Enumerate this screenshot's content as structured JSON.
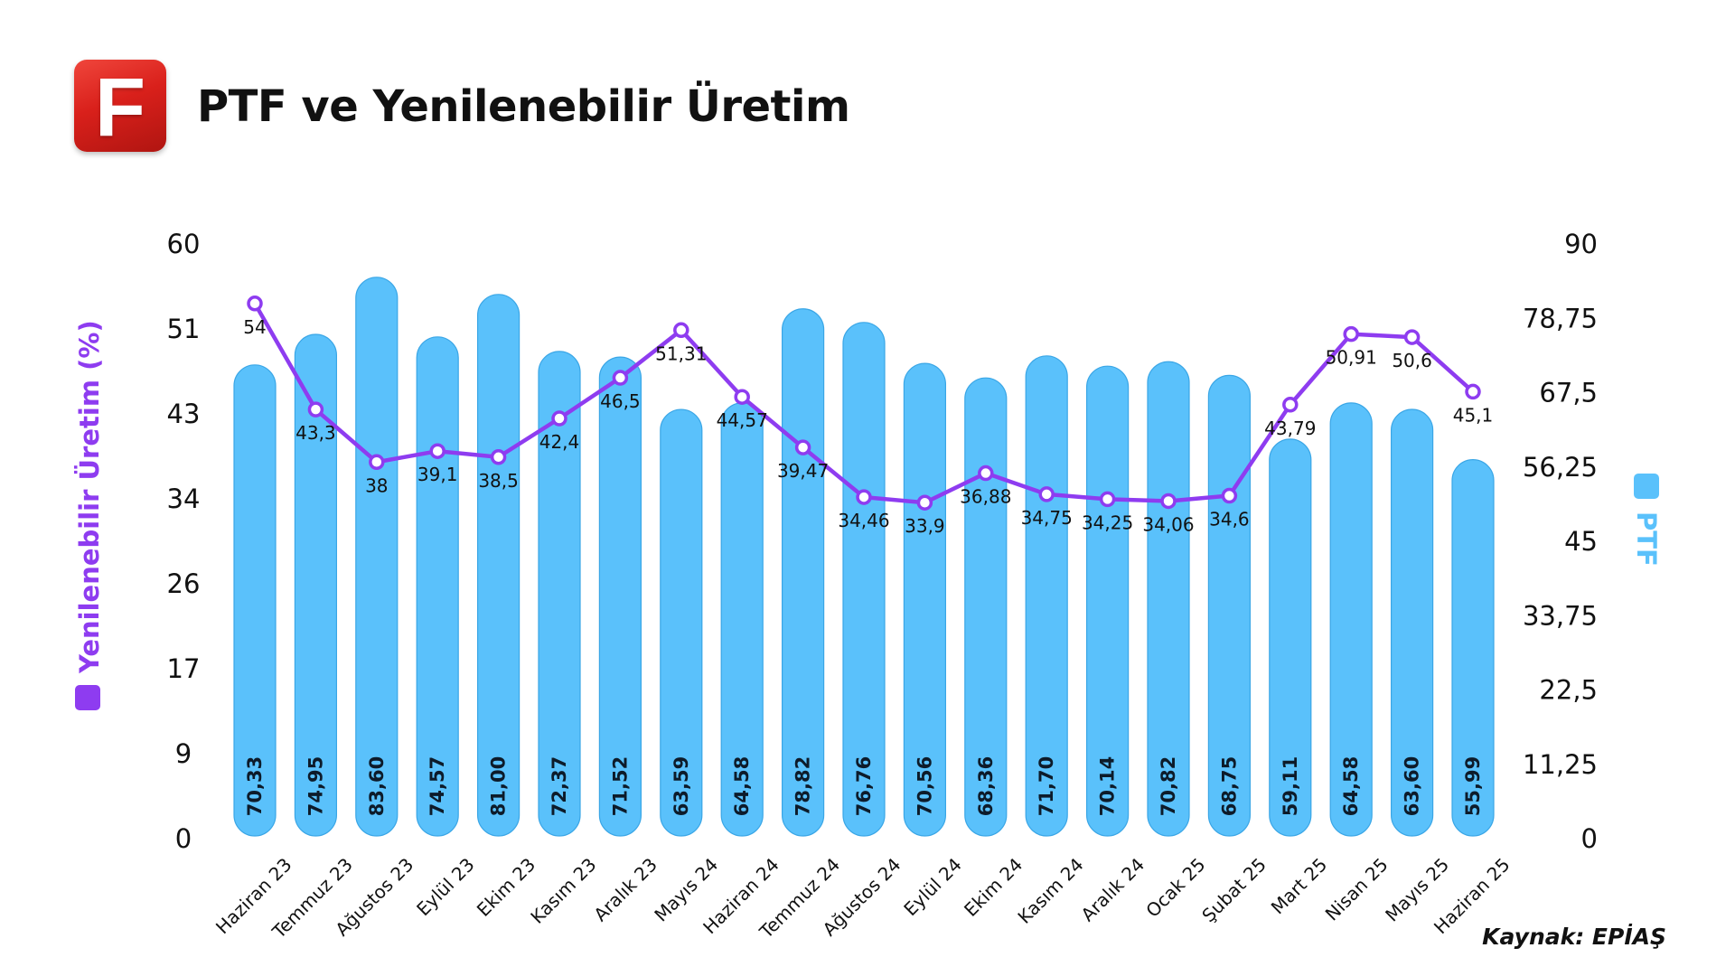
{
  "header": {
    "logo_letter": "F",
    "title": "PTF ve Yenilenebilir Üretim",
    "source": "Kaynak: EPİAŞ"
  },
  "colors": {
    "bar": "#5ac1fb",
    "bar_stroke": "#3aa6e6",
    "line": "#8e3cf0",
    "logo": "#d9201b"
  },
  "chart_data": {
    "type": "bar",
    "categories": [
      "Haziran 23",
      "Temmuz 23",
      "Ağustos 23",
      "Eylül 23",
      "Ekim 23",
      "Kasım 23",
      "Aralık 23",
      "Mayıs 24",
      "Haziran 24",
      "Temmuz 24",
      "Ağustos 24",
      "Eylül 24",
      "Ekim 24",
      "Kasım 24",
      "Aralık 24",
      "Ocak 25",
      "Şubat 25",
      "Mart 25",
      "Nisan 25",
      "Mayıs 25",
      "Haziran 25"
    ],
    "series": [
      {
        "name": "PTF",
        "type": "bar",
        "axis": "right",
        "values": [
          70.33,
          74.95,
          83.6,
          74.57,
          81.0,
          72.37,
          71.52,
          63.59,
          64.58,
          78.82,
          76.76,
          70.56,
          68.36,
          71.7,
          70.14,
          70.82,
          68.75,
          59.11,
          64.58,
          63.6,
          55.99
        ],
        "labels": [
          "70,33",
          "74,95",
          "83,60",
          "74,57",
          "81,00",
          "72,37",
          "71,52",
          "63,59",
          "64,58",
          "78,82",
          "76,76",
          "70,56",
          "68,36",
          "71,70",
          "70,14",
          "70,82",
          "68,75",
          "59,11",
          "64,58",
          "63,60",
          "55,99"
        ]
      },
      {
        "name": "Yenilenebilir Üretim (%)",
        "type": "line",
        "axis": "left",
        "values": [
          54,
          43.3,
          38,
          39.1,
          38.5,
          42.4,
          46.5,
          51.31,
          44.57,
          39.47,
          34.46,
          33.9,
          36.88,
          34.75,
          34.25,
          34.06,
          34.6,
          43.79,
          50.91,
          50.6,
          45.1
        ],
        "labels": [
          "54",
          "43,3",
          "38",
          "39,1",
          "38,5",
          "42,4",
          "46,5",
          "51,31",
          "44,57",
          "39,47",
          "34,46",
          "33,9",
          "36,88",
          "34,75",
          "34,25",
          "34,06",
          "34,6",
          "43,79",
          "50,91",
          "50,6",
          "45,1"
        ]
      }
    ],
    "left_axis": {
      "label": "Yenilenebilir Üretim (%)",
      "ylim": [
        0,
        60
      ],
      "ticks": [
        "60",
        "51",
        "43",
        "34",
        "26",
        "17",
        "9",
        "0"
      ]
    },
    "right_axis": {
      "label": "PTF",
      "ylim": [
        0,
        90
      ],
      "ticks": [
        "90",
        "78,75",
        "67,5",
        "56,25",
        "45",
        "33,75",
        "22,5",
        "11,25",
        "0"
      ]
    },
    "grid": false,
    "legend": "axis-labels"
  }
}
